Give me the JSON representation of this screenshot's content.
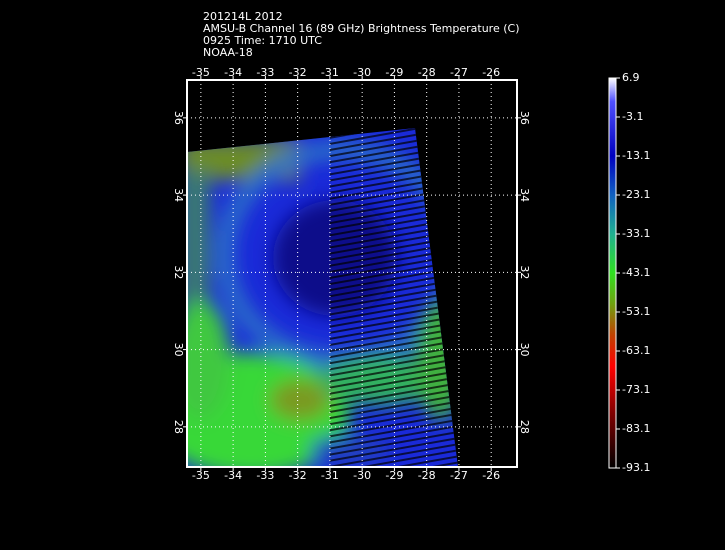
{
  "title_lines": [
    "201214L 2012",
    "AMSU-B Channel 16 (89 GHz) Brightness Temperature (C)",
    "0925 Time: 1710 UTC",
    "NOAA-18"
  ],
  "map": {
    "xlim": [
      -35.43,
      -25.2
    ],
    "ylim": [
      26.96,
      36.98
    ],
    "lon_ticks": [
      -35,
      -34,
      -33,
      -32,
      -31,
      -30,
      -29,
      -28,
      -27,
      -26
    ],
    "lat_ticks": [
      36,
      34,
      32,
      30,
      28
    ]
  },
  "colorbar": {
    "range": [
      -93.1,
      6.9
    ],
    "ticks": [
      6.9,
      -3.1,
      -13.1,
      -23.1,
      -33.1,
      -43.1,
      -53.1,
      -63.1,
      -73.1,
      -83.1,
      -93.1
    ]
  }
}
